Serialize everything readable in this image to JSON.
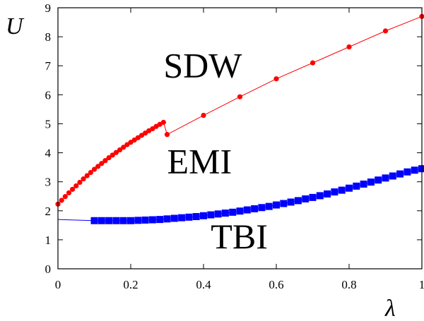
{
  "chart_data": {
    "type": "line",
    "xlabel": "λ",
    "ylabel": "U",
    "xlim": [
      0,
      1
    ],
    "ylim": [
      0,
      9
    ],
    "xticks": [
      "0",
      "0.2",
      "0.4",
      "0.6",
      "0.8",
      "1"
    ],
    "yticks": [
      "0",
      "1",
      "2",
      "3",
      "4",
      "5",
      "6",
      "7",
      "8",
      "9"
    ],
    "grid": false,
    "annotations": [
      {
        "text": "SDW",
        "x": 0.29,
        "y": 6.6
      },
      {
        "text": "EMI",
        "x": 0.3,
        "y": 3.3
      },
      {
        "text": "TBI",
        "x": 0.42,
        "y": 0.7
      }
    ],
    "series": [
      {
        "color": "#ff0000",
        "marker": "circle",
        "points": [
          [
            0.0,
            2.23
          ],
          [
            0.01,
            2.36
          ],
          [
            0.02,
            2.49
          ],
          [
            0.03,
            2.62
          ],
          [
            0.04,
            2.74
          ],
          [
            0.05,
            2.86
          ],
          [
            0.06,
            2.98
          ],
          [
            0.07,
            3.1
          ],
          [
            0.08,
            3.21
          ],
          [
            0.09,
            3.32
          ],
          [
            0.1,
            3.43
          ],
          [
            0.11,
            3.53
          ],
          [
            0.12,
            3.63
          ],
          [
            0.13,
            3.73
          ],
          [
            0.14,
            3.83
          ],
          [
            0.15,
            3.92
          ],
          [
            0.16,
            4.01
          ],
          [
            0.17,
            4.1
          ],
          [
            0.18,
            4.19
          ],
          [
            0.19,
            4.28
          ],
          [
            0.2,
            4.36
          ],
          [
            0.21,
            4.44
          ],
          [
            0.22,
            4.52
          ],
          [
            0.23,
            4.6
          ],
          [
            0.24,
            4.68
          ],
          [
            0.25,
            4.76
          ],
          [
            0.26,
            4.83
          ],
          [
            0.27,
            4.91
          ],
          [
            0.28,
            4.98
          ],
          [
            0.29,
            5.05
          ],
          [
            0.3,
            4.63
          ],
          [
            0.4,
            5.29
          ],
          [
            0.5,
            5.93
          ],
          [
            0.6,
            6.55
          ],
          [
            0.7,
            7.1
          ],
          [
            0.8,
            7.65
          ],
          [
            0.9,
            8.2
          ],
          [
            1.0,
            8.7
          ]
        ]
      },
      {
        "color": "#0000ff",
        "marker": "square",
        "connector_from": [
          0.0,
          1.7
        ],
        "points": [
          [
            0.1,
            1.66
          ],
          [
            0.12,
            1.66
          ],
          [
            0.14,
            1.66
          ],
          [
            0.16,
            1.66
          ],
          [
            0.18,
            1.66
          ],
          [
            0.2,
            1.66
          ],
          [
            0.22,
            1.67
          ],
          [
            0.24,
            1.68
          ],
          [
            0.26,
            1.69
          ],
          [
            0.28,
            1.7
          ],
          [
            0.3,
            1.72
          ],
          [
            0.32,
            1.74
          ],
          [
            0.34,
            1.76
          ],
          [
            0.36,
            1.78
          ],
          [
            0.38,
            1.8
          ],
          [
            0.4,
            1.83
          ],
          [
            0.42,
            1.86
          ],
          [
            0.44,
            1.89
          ],
          [
            0.46,
            1.92
          ],
          [
            0.48,
            1.95
          ],
          [
            0.5,
            1.99
          ],
          [
            0.52,
            2.03
          ],
          [
            0.54,
            2.07
          ],
          [
            0.56,
            2.11
          ],
          [
            0.58,
            2.15
          ],
          [
            0.6,
            2.2
          ],
          [
            0.62,
            2.25
          ],
          [
            0.64,
            2.3
          ],
          [
            0.66,
            2.35
          ],
          [
            0.68,
            2.41
          ],
          [
            0.7,
            2.46
          ],
          [
            0.72,
            2.52
          ],
          [
            0.74,
            2.58
          ],
          [
            0.76,
            2.65
          ],
          [
            0.78,
            2.71
          ],
          [
            0.8,
            2.78
          ],
          [
            0.82,
            2.85
          ],
          [
            0.84,
            2.92
          ],
          [
            0.86,
            2.99
          ],
          [
            0.88,
            3.06
          ],
          [
            0.9,
            3.13
          ],
          [
            0.92,
            3.2
          ],
          [
            0.94,
            3.27
          ],
          [
            0.96,
            3.34
          ],
          [
            0.98,
            3.4
          ],
          [
            1.0,
            3.45
          ]
        ]
      }
    ]
  }
}
